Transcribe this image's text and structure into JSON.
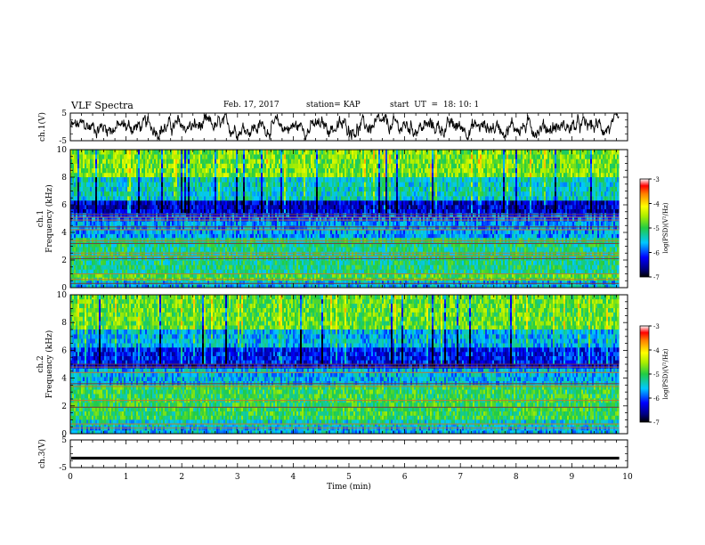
{
  "header": {
    "title": "VLF Spectra",
    "date": "Feb. 17, 2017",
    "station": "station= KAP",
    "start": "start  UT  =  18: 10: 1"
  },
  "chart_data": [
    {
      "type": "line",
      "panel": "ch1-voltage",
      "ylabel": "ch.1(V)",
      "ylim": [
        -5,
        5
      ],
      "yticks": [
        "5",
        "-5"
      ],
      "x_range_min": [
        0,
        9.85
      ],
      "series": [
        {
          "values_summary": "noisy waveform oscillating roughly between -3 and 3"
        }
      ],
      "color": "#000000"
    },
    {
      "type": "heatmap",
      "panel": "ch1-spectrogram",
      "ylabel": "ch.1\nFrequency (kHz)",
      "ylabel_line1": "ch.1",
      "ylabel_line2": "Frequency (kHz)",
      "ylim": [
        0,
        10
      ],
      "yticks": [
        "0",
        "2",
        "4",
        "6",
        "8",
        "10"
      ],
      "colorbar": {
        "label": "log(PSD)(V²/Hz)",
        "range": [
          -7,
          -3
        ],
        "ticks": [
          "-3",
          "-4",
          "-5",
          "-6",
          "-7"
        ]
      },
      "bands_khz": [
        {
          "from": 8.0,
          "to": 10,
          "level": -4.7
        },
        {
          "from": 6.3,
          "to": 8.0,
          "level": -5.4
        },
        {
          "from": 5.4,
          "to": 6.3,
          "level": -6.4
        },
        {
          "from": 4.8,
          "to": 5.4,
          "level": -6.0
        },
        {
          "from": 3.6,
          "to": 4.8,
          "level": -5.7
        },
        {
          "from": 1.0,
          "to": 3.6,
          "level": -5.2
        },
        {
          "from": 0.5,
          "to": 1.0,
          "level": -4.9
        },
        {
          "from": 0.0,
          "to": 0.5,
          "level": -5.6
        }
      ],
      "lines_khz": [
        5.3,
        5.1,
        4.9,
        4.4,
        4.2,
        3.4,
        3.2,
        2.5,
        2.3,
        2.1,
        1.0,
        0.6,
        0.3
      ]
    },
    {
      "type": "heatmap",
      "panel": "ch2-spectrogram",
      "ylabel": "ch.2\nFrequency (kHz)",
      "ylabel_line1": "ch.2",
      "ylabel_line2": "Frequency (kHz)",
      "ylim": [
        0,
        10
      ],
      "yticks": [
        "0",
        "2",
        "4",
        "6",
        "8",
        "10"
      ],
      "colorbar": {
        "label": "log(PSD)(V²/Hz)",
        "range": [
          -7,
          -3
        ],
        "ticks": [
          "-3",
          "-4",
          "-5",
          "-6",
          "-7"
        ]
      },
      "bands_khz": [
        {
          "from": 7.5,
          "to": 10,
          "level": -4.8
        },
        {
          "from": 6.2,
          "to": 7.5,
          "level": -5.6
        },
        {
          "from": 5.0,
          "to": 6.2,
          "level": -6.2
        },
        {
          "from": 4.7,
          "to": 5.0,
          "level": -6.4
        },
        {
          "from": 3.5,
          "to": 4.7,
          "level": -5.6
        },
        {
          "from": 1.0,
          "to": 3.5,
          "level": -5.0
        },
        {
          "from": 0.5,
          "to": 1.0,
          "level": -5.4
        },
        {
          "from": 0.0,
          "to": 0.5,
          "level": -5.6
        }
      ],
      "lines_khz": [
        5.0,
        4.8,
        4.4,
        3.6,
        3.4,
        2.4,
        1.9,
        0.7,
        0.4
      ]
    },
    {
      "type": "line",
      "panel": "ch3-voltage",
      "ylabel": "ch.3(V)",
      "ylim": [
        -5,
        5
      ],
      "yticks": [
        "5",
        "-5"
      ],
      "series": [
        {
          "values_summary": "flat signal at about -1.6 V",
          "value": -1.6
        }
      ],
      "color": "#000000",
      "xlabel": "Time (min)",
      "xlim": [
        0,
        10
      ],
      "xticks": [
        "0",
        "1",
        "2",
        "3",
        "4",
        "5",
        "6",
        "7",
        "8",
        "9",
        "10"
      ]
    }
  ]
}
